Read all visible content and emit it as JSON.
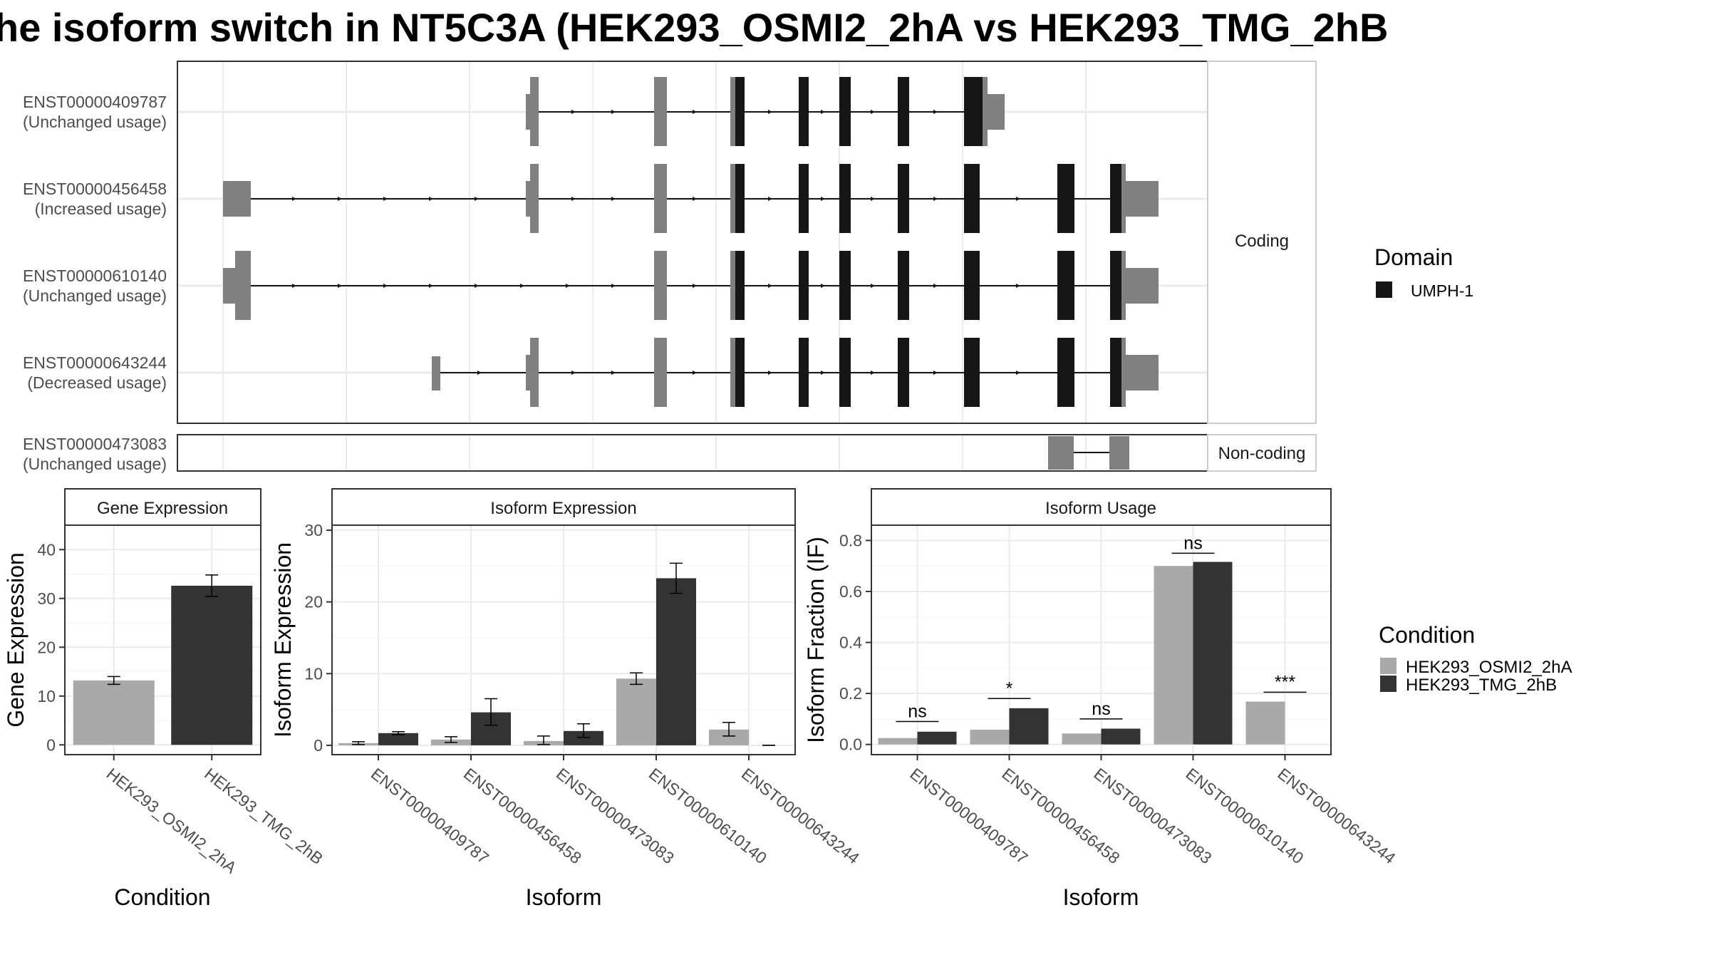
{
  "title": "he isoform switch in NT5C3A (HEK293_OSMI2_2hA vs HEK293_TMG_2hB",
  "colors": {
    "condition_a": "#a9a9a9",
    "condition_b": "#333333",
    "domain": "#161616",
    "exon": "#808080",
    "panel_border": "#333333",
    "strip_border": "#cccccc",
    "grid": "#ebebeb"
  },
  "structure": {
    "facet_coding": "Coding",
    "facet_noncoding": "Non-coding",
    "domain_legend_title": "Domain",
    "domain_legend_items": [
      "UMPH-1"
    ],
    "coding_tracks": [
      {
        "id": "ENST00000409787",
        "status": "(Unchanged usage)"
      },
      {
        "id": "ENST00000456458",
        "status": "(Increased usage)"
      },
      {
        "id": "ENST00000610140",
        "status": "(Unchanged usage)"
      },
      {
        "id": "ENST00000643244",
        "status": "(Decreased usage)"
      }
    ],
    "noncoding_tracks": [
      {
        "id": "ENST00000473083",
        "status": "(Unchanged usage)"
      }
    ]
  },
  "chart_data": [
    {
      "type": "bar",
      "title": "Gene Expression",
      "xlabel": "Condition",
      "ylabel": "Gene Expression",
      "categories": [
        "HEK293_OSMI2_2hA",
        "HEK293_TMG_2hB"
      ],
      "values": [
        13.2,
        32.6
      ],
      "errors": [
        [
          12.4,
          14.0
        ],
        [
          30.4,
          34.8
        ]
      ],
      "ylim": [
        -2,
        45
      ],
      "yticks": [
        0,
        10,
        20,
        30,
        40
      ]
    },
    {
      "type": "bar",
      "title": "Isoform Expression",
      "xlabel": "Isoform",
      "ylabel": "Isoform Expression",
      "categories": [
        "ENST00000409787",
        "ENST00000456458",
        "ENST00000473083",
        "ENST00000610140",
        "ENST00000643244"
      ],
      "series": [
        {
          "name": "HEK293_OSMI2_2hA",
          "values": [
            0.3,
            0.8,
            0.6,
            9.3,
            2.2
          ],
          "errors": [
            [
              0.1,
              0.5
            ],
            [
              0.4,
              1.2
            ],
            [
              0.1,
              1.3
            ],
            [
              8.5,
              10.1
            ],
            [
              1.3,
              3.2
            ]
          ]
        },
        {
          "name": "HEK293_TMG_2hB",
          "values": [
            1.7,
            4.6,
            2.0,
            23.3,
            0.0
          ],
          "errors": [
            [
              1.5,
              1.9
            ],
            [
              2.8,
              6.5
            ],
            [
              1.1,
              3.0
            ],
            [
              21.2,
              25.4
            ],
            [
              0.0,
              0.0
            ]
          ]
        }
      ],
      "ylim": [
        -1.3,
        30.7
      ],
      "yticks": [
        0,
        10,
        20,
        30
      ]
    },
    {
      "type": "bar",
      "title": "Isoform Usage",
      "xlabel": "Isoform",
      "ylabel": "Isoform Fraction (IF)",
      "categories": [
        "ENST00000409787",
        "ENST00000456458",
        "ENST00000473083",
        "ENST00000610140",
        "ENST00000643244"
      ],
      "series": [
        {
          "name": "HEK293_OSMI2_2hA",
          "values": [
            0.025,
            0.058,
            0.043,
            0.7,
            0.168
          ]
        },
        {
          "name": "HEK293_TMG_2hB",
          "values": [
            0.05,
            0.142,
            0.062,
            0.716,
            0.0
          ]
        }
      ],
      "significance": [
        "ns",
        "*",
        "ns",
        "ns",
        "***"
      ],
      "significance_level": [
        0.09,
        0.18,
        0.1,
        0.75,
        0.205
      ],
      "ylim": [
        -0.04,
        0.86
      ],
      "yticks": [
        0.0,
        0.2,
        0.4,
        0.6,
        0.8
      ],
      "ytick_labels": [
        "0.0",
        "0.2",
        "0.4",
        "0.6",
        "0.8"
      ]
    }
  ],
  "condition_legend": {
    "title": "Condition",
    "items": [
      "HEK293_OSMI2_2hA",
      "HEK293_TMG_2hB"
    ]
  }
}
